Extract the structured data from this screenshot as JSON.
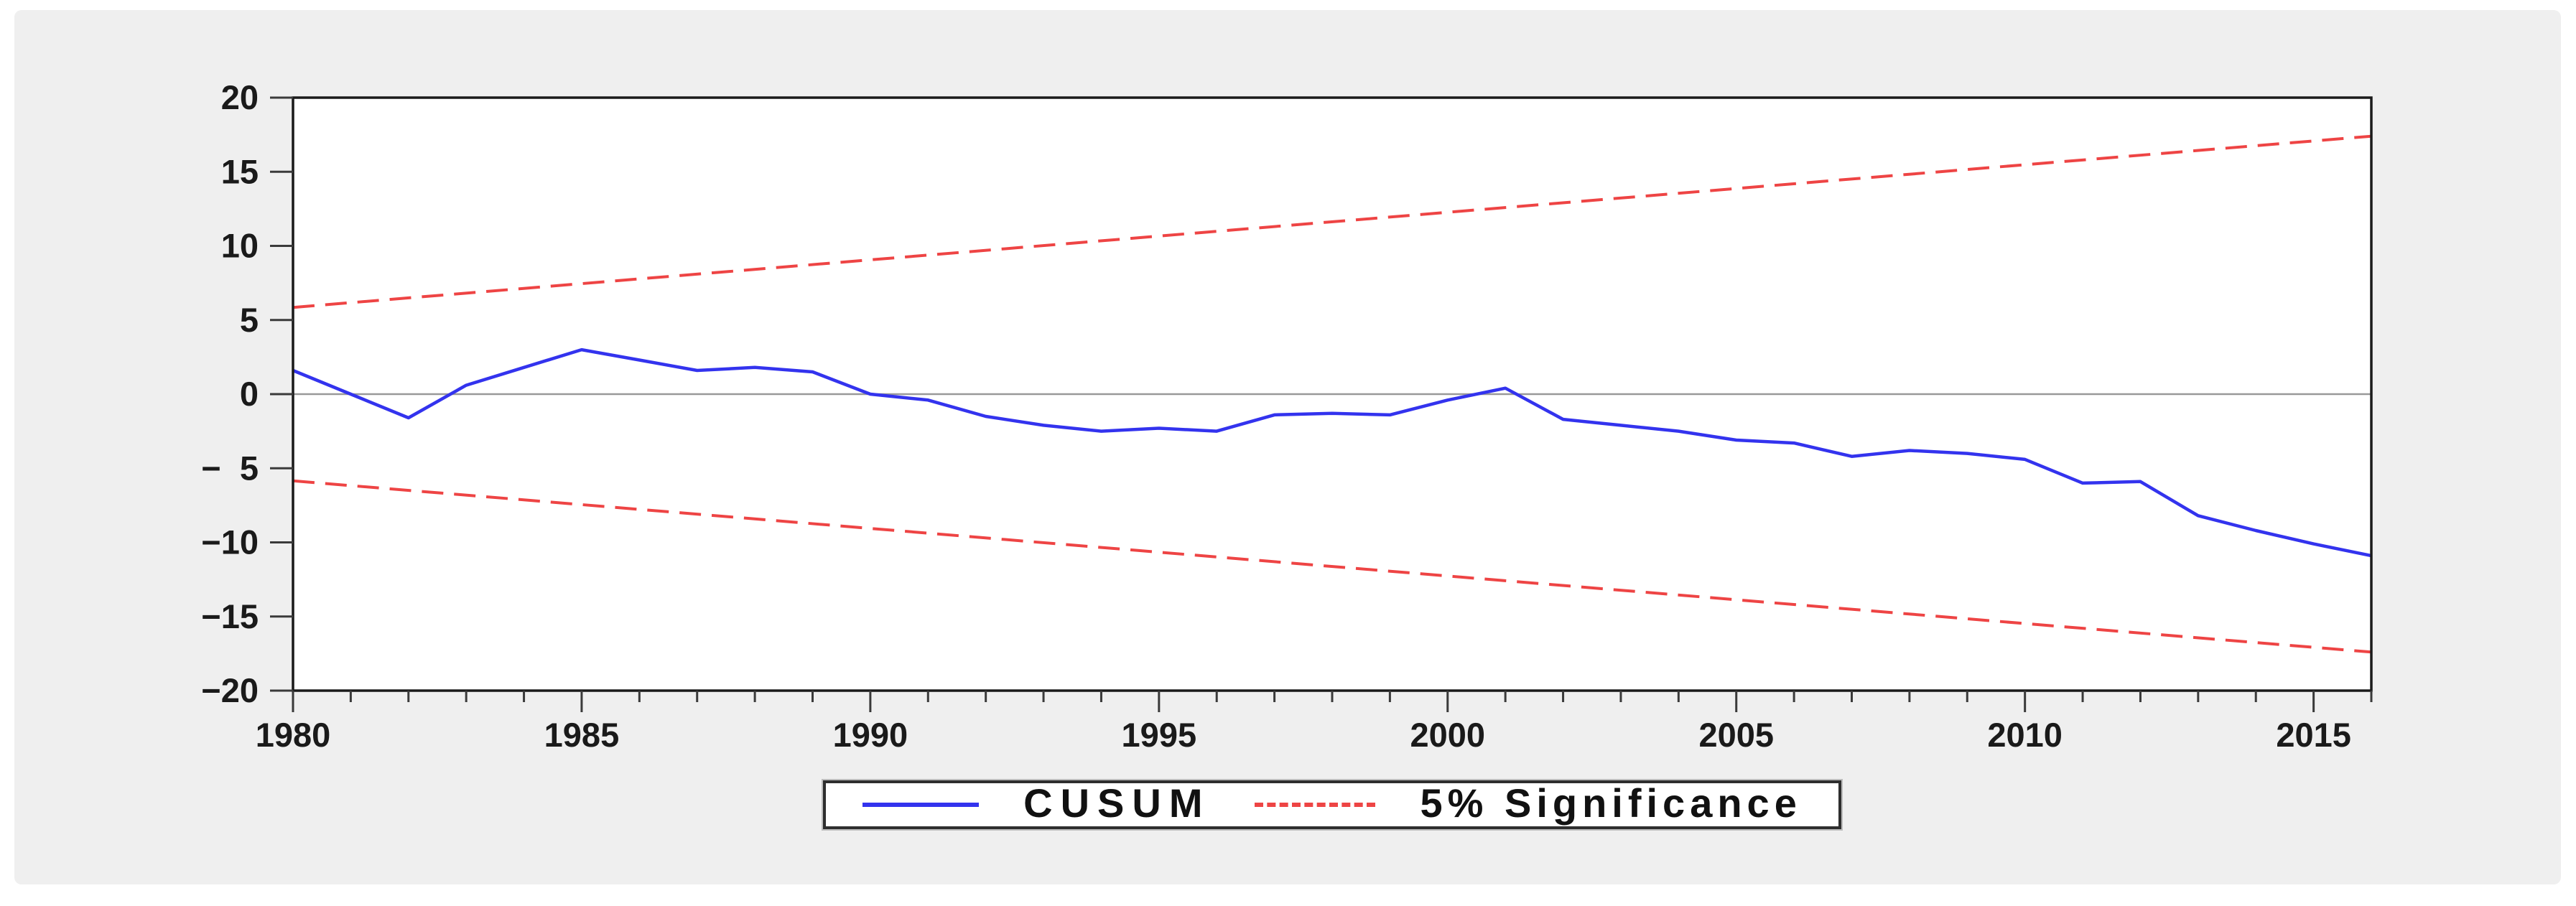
{
  "window_title": "CUSUM stability test plot",
  "colors": {
    "page_background": "#ffffff",
    "canvas_background": "#efefef",
    "plot_background": "#ffffff",
    "plot_border": "#1a1a1a",
    "tick_color": "#3a3a3a",
    "label_color": "#1a1a1a",
    "zero_line": "#999999",
    "cusum_blue": "#3333ee",
    "significance_red": "#ee4444"
  },
  "chart_data": {
    "type": "line",
    "title": "",
    "xlabel": "",
    "ylabel": "",
    "x_range": [
      1980,
      2016
    ],
    "y_range": [
      -20,
      20
    ],
    "grid": false,
    "zero_line": true,
    "x_tick_labels": [
      "1980",
      "1985",
      "1990",
      "1995",
      "2000",
      "2005",
      "2010",
      "2015"
    ],
    "x_minor_tick_step_years": 1,
    "y_tick_labels": [
      "20",
      "15",
      "10",
      "5",
      "0",
      "-5",
      "-10",
      "-15",
      "-20"
    ],
    "series": [
      {
        "name": "CUSUM",
        "color": "#3333ee",
        "dash": "solid",
        "x": [
          1980,
          1981,
          1982,
          1983,
          1984,
          1985,
          1986,
          1987,
          1988,
          1989,
          1990,
          1991,
          1992,
          1993,
          1994,
          1995,
          1996,
          1997,
          1998,
          1999,
          2000,
          2001,
          2002,
          2003,
          2004,
          2005,
          2006,
          2007,
          2008,
          2009,
          2010,
          2011,
          2012,
          2013,
          2014,
          2015,
          2016
        ],
        "y": [
          1.6,
          0.0,
          -1.6,
          0.6,
          1.8,
          3.0,
          2.3,
          1.6,
          1.8,
          1.5,
          0.0,
          -0.4,
          -1.5,
          -2.1,
          -2.5,
          -2.3,
          -2.5,
          -1.4,
          -1.3,
          -1.4,
          -0.4,
          0.4,
          -1.7,
          -2.1,
          -2.5,
          -3.1,
          -3.3,
          -4.2,
          -3.8,
          -4.0,
          -4.4,
          -6.0,
          -5.9,
          -8.2,
          -9.2,
          -10.1,
          -10.9
        ]
      },
      {
        "name": "5% Significance (upper bound)",
        "color": "#ee4444",
        "dash": "dashed",
        "x": [
          1980,
          2016
        ],
        "y": [
          5.85,
          17.4
        ]
      },
      {
        "name": "5% Significance (lower bound)",
        "color": "#ee4444",
        "dash": "dashed",
        "x": [
          1980,
          2016
        ],
        "y": [
          -5.85,
          -17.4
        ]
      }
    ],
    "legend_position": "bottom-center",
    "legend": [
      {
        "label": "CUSUM",
        "color": "#3333ee",
        "style": "solid"
      },
      {
        "label": "5% Significance",
        "color": "#ee4444",
        "style": "dashed"
      }
    ]
  }
}
